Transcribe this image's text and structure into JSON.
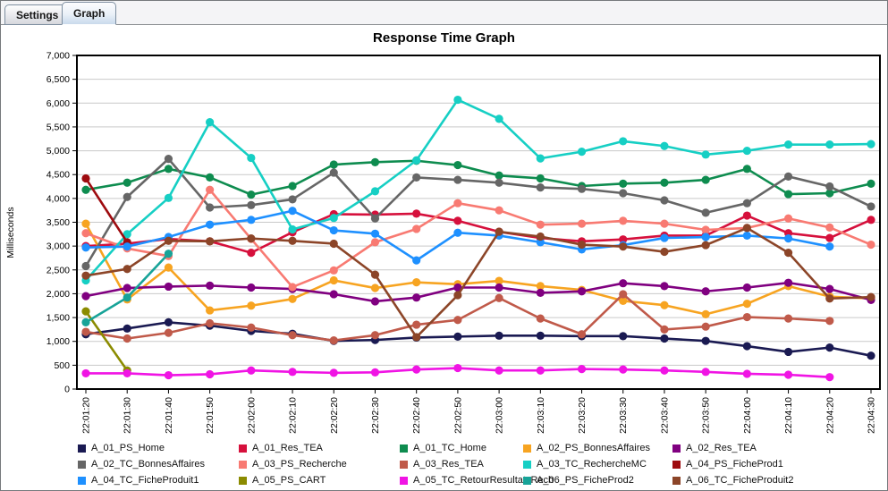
{
  "window": {
    "tabs": [
      {
        "label": "Settings",
        "active": false
      },
      {
        "label": "Graph",
        "active": true
      }
    ]
  },
  "chart_data": {
    "type": "line",
    "title": "Response Time Graph",
    "ylabel": "Milliseconds",
    "grid": true,
    "legend_position": "bottom",
    "y_axis": {
      "min": 0,
      "max": 7000,
      "step": 500
    },
    "x": [
      "22:01:20",
      "22:01:30",
      "22:01:40",
      "22:01:50",
      "22:02:00",
      "22:02:10",
      "22:02:20",
      "22:02:30",
      "22:02:40",
      "22:02:50",
      "22:03:00",
      "22:03:10",
      "22:03:20",
      "22:03:30",
      "22:03:40",
      "22:03:50",
      "22:04:00",
      "22:04:10",
      "22:04:20",
      "22:04:30"
    ],
    "series": [
      {
        "name": "A_01_PS_Home",
        "color": "#1a1a52",
        "values": [
          1150,
          1270,
          1400,
          1330,
          1220,
          1160,
          1010,
          1030,
          1080,
          1100,
          1120,
          1120,
          1110,
          1110,
          1060,
          1010,
          900,
          780,
          870,
          700
        ]
      },
      {
        "name": "A_01_Res_TEA",
        "color": "#d6103c",
        "values": [
          3000,
          3050,
          3150,
          3100,
          2860,
          3290,
          3670,
          3660,
          3680,
          3530,
          3300,
          3170,
          3100,
          3140,
          3220,
          3220,
          3640,
          3270,
          3170,
          3550
        ]
      },
      {
        "name": "A_01_TC_Home",
        "color": "#0e8c4f",
        "values": [
          4180,
          4330,
          4620,
          4440,
          4080,
          4260,
          4710,
          4760,
          4790,
          4700,
          4480,
          4420,
          4260,
          4310,
          4330,
          4390,
          4620,
          4090,
          4110,
          4310
        ]
      },
      {
        "name": "A_02_PS_BonnesAffaires",
        "color": "#f7a421",
        "values": [
          3470,
          1880,
          2550,
          1650,
          1750,
          1890,
          2280,
          2120,
          2240,
          2200,
          2270,
          2160,
          2080,
          1850,
          1760,
          1570,
          1790,
          2160,
          1940,
          1900
        ]
      },
      {
        "name": "A_02_Res_TEA",
        "color": "#800080",
        "values": [
          1950,
          2120,
          2150,
          2170,
          2130,
          2100,
          1990,
          1840,
          1920,
          2130,
          2130,
          2020,
          2050,
          2220,
          2160,
          2050,
          2130,
          2230,
          2100,
          1870
        ]
      },
      {
        "name": "A_02_TC_BonnesAffaires",
        "color": "#666666",
        "values": [
          2580,
          4030,
          4830,
          3810,
          3860,
          3980,
          4540,
          3580,
          4440,
          4390,
          4330,
          4230,
          4200,
          4110,
          3960,
          3700,
          3900,
          4460,
          4250,
          3830
        ]
      },
      {
        "name": "A_03_PS_Recherche",
        "color": "#f87a72",
        "values": [
          3270,
          2950,
          2790,
          4180,
          3150,
          2140,
          2490,
          3080,
          3360,
          3900,
          3750,
          3450,
          3470,
          3530,
          3470,
          3340,
          3380,
          3580,
          3390,
          3030
        ]
      },
      {
        "name": "A_03_Res_TEA",
        "color": "#c05a4a",
        "values": [
          1200,
          1060,
          1180,
          1380,
          1290,
          1130,
          1020,
          1130,
          1350,
          1450,
          1910,
          1480,
          1150,
          1990,
          1250,
          1310,
          1510,
          1480,
          1430,
          null
        ]
      },
      {
        "name": "A_03_TC_RechercheMC",
        "color": "#16cfc4",
        "values": [
          2280,
          3250,
          4010,
          5600,
          4850,
          3350,
          3590,
          4150,
          4800,
          6070,
          5670,
          4840,
          4980,
          5200,
          5100,
          4920,
          5000,
          5130,
          5130,
          5140
        ]
      },
      {
        "name": "A_04_PS_FicheProd1",
        "color": "#9e0b0f",
        "values": [
          4420,
          3080,
          null,
          null,
          null,
          null,
          null,
          null,
          null,
          null,
          null,
          null,
          null,
          null,
          null,
          null,
          null,
          null,
          null,
          null
        ]
      },
      {
        "name": "A_04_TC_FicheProduit1",
        "color": "#1e90ff",
        "values": [
          2970,
          2990,
          3190,
          3450,
          3550,
          3740,
          3330,
          3260,
          2700,
          3280,
          3220,
          3080,
          2930,
          3020,
          3170,
          3190,
          3220,
          3160,
          2990,
          null
        ]
      },
      {
        "name": "A_05_PS_CART",
        "color": "#8b8b00",
        "values": [
          1630,
          390,
          null,
          null,
          null,
          null,
          null,
          null,
          null,
          null,
          null,
          null,
          null,
          null,
          null,
          null,
          null,
          null,
          null,
          null
        ]
      },
      {
        "name": "A_05_TC_RetourResultatsRech",
        "color": "#f014e4",
        "values": [
          330,
          330,
          290,
          310,
          390,
          360,
          340,
          350,
          410,
          440,
          390,
          390,
          420,
          410,
          390,
          360,
          320,
          300,
          250,
          null
        ]
      },
      {
        "name": "A_06_PS_FicheProd2",
        "color": "#17a398",
        "values": [
          1400,
          1920,
          2840,
          null,
          null,
          null,
          null,
          null,
          null,
          null,
          null,
          null,
          null,
          null,
          null,
          null,
          null,
          null,
          null,
          null
        ]
      },
      {
        "name": "A_06_TC_FicheProduit2",
        "color": "#8c4528",
        "values": [
          2380,
          2520,
          3110,
          3100,
          3160,
          3110,
          3050,
          2400,
          1090,
          1970,
          3300,
          3200,
          3030,
          2990,
          2880,
          3020,
          3380,
          2860,
          1900,
          1930
        ]
      }
    ]
  }
}
